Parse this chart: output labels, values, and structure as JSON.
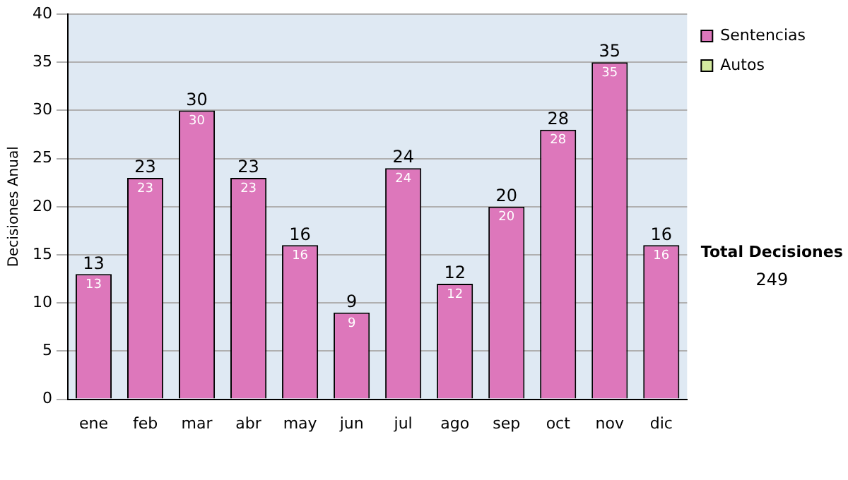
{
  "chart_data": {
    "type": "bar",
    "ylabel": "Decisiones Anual",
    "categories": [
      "ene",
      "feb",
      "mar",
      "abr",
      "may",
      "jun",
      "jul",
      "ago",
      "sep",
      "oct",
      "nov",
      "dic"
    ],
    "series": [
      {
        "name": "Sentencias",
        "color": "#dd77bb",
        "values": [
          13,
          23,
          30,
          23,
          16,
          9,
          24,
          12,
          20,
          28,
          35,
          16
        ],
        "value_labels": [
          "13",
          "23",
          "30",
          "23",
          "16",
          "9",
          "24",
          "12",
          "20",
          "28",
          "35",
          "16"
        ]
      },
      {
        "name": "Autos",
        "color": "#d4eaa0",
        "values": [
          0,
          0,
          0,
          0,
          0,
          0,
          0,
          0,
          0,
          0,
          0,
          0
        ]
      }
    ],
    "stacked": true,
    "totals": [
      "13",
      "23",
      "30",
      "23",
      "16",
      "9",
      "24",
      "12",
      "20",
      "28",
      "35",
      "16"
    ],
    "ylim": [
      0,
      40
    ],
    "yticks": [
      0,
      5,
      10,
      15,
      20,
      25,
      30,
      35,
      40
    ],
    "grid": "y",
    "legend": "right",
    "annotations": [
      "Total Decisiones",
      "249"
    ]
  }
}
